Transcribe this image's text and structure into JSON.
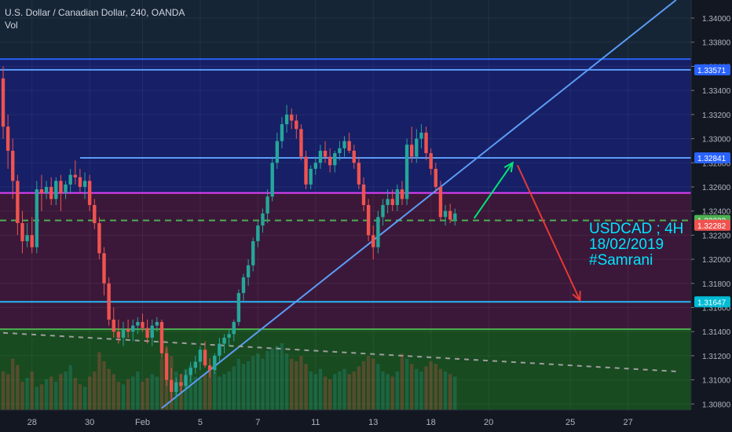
{
  "legend": {
    "symbol_line": "U.S. Dollar / Canadian Dollar, 240, OANDA",
    "volume_label": "Vol"
  },
  "annotation": {
    "line1": "USDCAD ; 4H",
    "line2": "18/02/2019",
    "line3": "#Samrani"
  },
  "chart_data": {
    "type": "candlestick",
    "title": "U.S. Dollar / Canadian Dollar, 240, OANDA",
    "y_axis": {
      "position": "right",
      "range": [
        1.3075,
        1.3415
      ],
      "tick_labels": [
        "1.34000",
        "1.33800",
        "1.33600",
        "1.33400",
        "1.33200",
        "1.33000",
        "1.32800",
        "1.32600",
        "1.32400",
        "1.32200",
        "1.32000",
        "1.31800",
        "1.31600",
        "1.31400",
        "1.31200",
        "1.31000",
        "1.30800"
      ],
      "price_tags": [
        {
          "label": "1.33571",
          "color": "#2962ff",
          "value": 1.33571
        },
        {
          "label": "1.32841",
          "color": "#2962ff",
          "value": 1.32841
        },
        {
          "label": "1.32322",
          "color": "#4caf50",
          "value": 1.32322
        },
        {
          "label": "1.32282",
          "color": "#ef5350",
          "value": 1.32282
        },
        {
          "label": "1.31647",
          "color": "#00bcd4",
          "value": 1.31647
        }
      ]
    },
    "x_axis": {
      "tick_labels": [
        "28",
        "30",
        "Feb",
        "5",
        "7",
        "11",
        "13",
        "18",
        "20",
        "25",
        "27"
      ],
      "tick_bars": [
        6,
        18,
        29,
        41,
        53,
        65,
        77,
        89,
        101,
        118,
        130
      ]
    },
    "horizontal_levels": [
      {
        "name": "top-zone-upper",
        "value": 1.3366,
        "color": "#2962ff"
      },
      {
        "name": "resistance-1",
        "value": 1.33571,
        "color": "#5b9cf6"
      },
      {
        "name": "resistance-2",
        "value": 1.32841,
        "color": "#5b9cf6",
        "from_bar": 16
      },
      {
        "name": "magenta-level",
        "value": 1.3255,
        "color": "#e040fb"
      },
      {
        "name": "current-price",
        "value": 1.32322,
        "color": "#4caf50",
        "style": "dashed"
      },
      {
        "name": "support-1",
        "value": 1.31647,
        "color": "#29b6f6"
      },
      {
        "name": "support-zone-top",
        "value": 1.3142,
        "color": "#4caf50"
      }
    ],
    "zones": [
      {
        "name": "blue-zone",
        "top": 1.3365,
        "bottom": 1.3255,
        "color": "#1a237e"
      },
      {
        "name": "magenta-zone",
        "top": 1.3255,
        "bottom": 1.3142,
        "color": "#4a1942"
      },
      {
        "name": "green-zone",
        "top": 1.3142,
        "bottom": 1.3075,
        "color": "#1b5e20"
      }
    ],
    "trendlines": [
      {
        "name": "ascending-trendline",
        "from": {
          "bar": 33,
          "price": 1.30765
        },
        "to": {
          "bar": 140,
          "price": 1.3415
        },
        "color": "#5b9cf6"
      },
      {
        "name": "descending-dashed-line",
        "from": {
          "bar": 0,
          "price": 1.3139
        },
        "to": {
          "bar": 140,
          "price": 1.3107
        },
        "color": "#9e9e9e",
        "style": "dashed"
      }
    ],
    "projection_arrows": [
      {
        "name": "up-arrow",
        "from": {
          "bar": 98,
          "price": 1.3234
        },
        "to": {
          "bar": 106,
          "price": 1.328
        },
        "color": "#00e676"
      },
      {
        "name": "down-arrow",
        "from": {
          "bar": 107,
          "price": 1.3278
        },
        "to": {
          "bar": 120,
          "price": 1.3166
        },
        "color": "#e53935"
      }
    ],
    "candles": [
      [
        1.335,
        1.336,
        1.33,
        1.331
      ],
      [
        1.331,
        1.332,
        1.3275,
        1.329
      ],
      [
        1.329,
        1.33,
        1.325,
        1.3265
      ],
      [
        1.3265,
        1.327,
        1.322,
        1.323
      ],
      [
        1.323,
        1.324,
        1.3205,
        1.3215
      ],
      [
        1.3215,
        1.323,
        1.321,
        1.322
      ],
      [
        1.322,
        1.3235,
        1.3205,
        1.321
      ],
      [
        1.321,
        1.3265,
        1.3205,
        1.3258
      ],
      [
        1.3258,
        1.327,
        1.324,
        1.3255
      ],
      [
        1.3255,
        1.3265,
        1.325,
        1.326
      ],
      [
        1.326,
        1.3268,
        1.3245,
        1.325
      ],
      [
        1.325,
        1.3268,
        1.3245,
        1.3265
      ],
      [
        1.3265,
        1.327,
        1.324,
        1.3255
      ],
      [
        1.3255,
        1.3265,
        1.325,
        1.3262
      ],
      [
        1.3262,
        1.3275,
        1.3255,
        1.327
      ],
      [
        1.327,
        1.3282,
        1.3262,
        1.3268
      ],
      [
        1.3268,
        1.3275,
        1.3255,
        1.326
      ],
      [
        1.326,
        1.3272,
        1.325,
        1.3265
      ],
      [
        1.3265,
        1.327,
        1.324,
        1.3245
      ],
      [
        1.3245,
        1.325,
        1.3225,
        1.323
      ],
      [
        1.323,
        1.3235,
        1.32,
        1.3205
      ],
      [
        1.3205,
        1.321,
        1.317,
        1.318
      ],
      [
        1.318,
        1.3185,
        1.3145,
        1.315
      ],
      [
        1.315,
        1.316,
        1.3135,
        1.314
      ],
      [
        1.314,
        1.315,
        1.313,
        1.3135
      ],
      [
        1.3135,
        1.3148,
        1.3128,
        1.3142
      ],
      [
        1.3142,
        1.315,
        1.3135,
        1.314
      ],
      [
        1.314,
        1.315,
        1.3132,
        1.3145
      ],
      [
        1.3145,
        1.3152,
        1.3138,
        1.3148
      ],
      [
        1.3148,
        1.3155,
        1.314,
        1.3143
      ],
      [
        1.3143,
        1.315,
        1.313,
        1.3135
      ],
      [
        1.3135,
        1.315,
        1.3128,
        1.3145
      ],
      [
        1.3145,
        1.3152,
        1.314,
        1.3148
      ],
      [
        1.3148,
        1.315,
        1.3118,
        1.3122
      ],
      [
        1.3122,
        1.3128,
        1.3095,
        1.31
      ],
      [
        1.31,
        1.311,
        1.3082,
        1.309
      ],
      [
        1.309,
        1.3102,
        1.3085,
        1.3098
      ],
      [
        1.3098,
        1.3105,
        1.309,
        1.3095
      ],
      [
        1.3095,
        1.3108,
        1.3092,
        1.3104
      ],
      [
        1.3104,
        1.3115,
        1.3098,
        1.311
      ],
      [
        1.311,
        1.312,
        1.3105,
        1.3115
      ],
      [
        1.3115,
        1.3128,
        1.3108,
        1.3125
      ],
      [
        1.3125,
        1.3132,
        1.311,
        1.3112
      ],
      [
        1.3112,
        1.3118,
        1.3102,
        1.3108
      ],
      [
        1.3108,
        1.3122,
        1.3105,
        1.312
      ],
      [
        1.312,
        1.3135,
        1.3115,
        1.313
      ],
      [
        1.313,
        1.3138,
        1.3122,
        1.3135
      ],
      [
        1.3135,
        1.3142,
        1.3128,
        1.3138
      ],
      [
        1.3138,
        1.315,
        1.3132,
        1.3148
      ],
      [
        1.3148,
        1.3175,
        1.3145,
        1.3172
      ],
      [
        1.3172,
        1.3188,
        1.3165,
        1.3185
      ],
      [
        1.3185,
        1.32,
        1.3178,
        1.3195
      ],
      [
        1.3195,
        1.3218,
        1.319,
        1.3215
      ],
      [
        1.3215,
        1.3232,
        1.321,
        1.3228
      ],
      [
        1.3228,
        1.3242,
        1.3222,
        1.3238
      ],
      [
        1.3238,
        1.3258,
        1.323,
        1.3252
      ],
      [
        1.3252,
        1.3285,
        1.3248,
        1.328
      ],
      [
        1.328,
        1.3305,
        1.3275,
        1.3298
      ],
      [
        1.3298,
        1.3318,
        1.3292,
        1.3312
      ],
      [
        1.3312,
        1.3328,
        1.3305,
        1.332
      ],
      [
        1.332,
        1.3325,
        1.3308,
        1.3315
      ],
      [
        1.3315,
        1.332,
        1.33,
        1.3308
      ],
      [
        1.3308,
        1.3312,
        1.3282,
        1.3285
      ],
      [
        1.3285,
        1.329,
        1.3258,
        1.3262
      ],
      [
        1.3262,
        1.3278,
        1.3258,
        1.3275
      ],
      [
        1.3275,
        1.3285,
        1.327,
        1.328
      ],
      [
        1.328,
        1.3295,
        1.3275,
        1.329
      ],
      [
        1.329,
        1.3298,
        1.328,
        1.3285
      ],
      [
        1.3285,
        1.3292,
        1.3272,
        1.3278
      ],
      [
        1.3278,
        1.329,
        1.3272,
        1.3288
      ],
      [
        1.3288,
        1.3298,
        1.3282,
        1.3292
      ],
      [
        1.3292,
        1.3302,
        1.3285,
        1.3298
      ],
      [
        1.3298,
        1.3305,
        1.3288,
        1.329
      ],
      [
        1.329,
        1.3295,
        1.3275,
        1.328
      ],
      [
        1.328,
        1.3285,
        1.3258,
        1.3262
      ],
      [
        1.3262,
        1.3268,
        1.324,
        1.3245
      ],
      [
        1.3245,
        1.325,
        1.3215,
        1.322
      ],
      [
        1.322,
        1.3228,
        1.32,
        1.321
      ],
      [
        1.321,
        1.324,
        1.3205,
        1.3235
      ],
      [
        1.3235,
        1.325,
        1.3228,
        1.3245
      ],
      [
        1.3245,
        1.3258,
        1.3238,
        1.325
      ],
      [
        1.325,
        1.3258,
        1.324,
        1.3245
      ],
      [
        1.3245,
        1.3262,
        1.324,
        1.3258
      ],
      [
        1.3258,
        1.3265,
        1.3245,
        1.325
      ],
      [
        1.325,
        1.33,
        1.3245,
        1.3295
      ],
      [
        1.3295,
        1.331,
        1.328,
        1.3285
      ],
      [
        1.3285,
        1.3308,
        1.328,
        1.33
      ],
      [
        1.33,
        1.3312,
        1.3292,
        1.3305
      ],
      [
        1.3305,
        1.331,
        1.3282,
        1.3288
      ],
      [
        1.3288,
        1.3292,
        1.327,
        1.3275
      ],
      [
        1.3275,
        1.328,
        1.3255,
        1.326
      ],
      [
        1.326,
        1.3265,
        1.3232,
        1.3235
      ],
      [
        1.3235,
        1.3245,
        1.3228,
        1.324
      ],
      [
        1.324,
        1.3246,
        1.323,
        1.3233
      ],
      [
        1.3233,
        1.3242,
        1.3228,
        1.3238
      ]
    ],
    "volumes": [
      30,
      28,
      40,
      35,
      22,
      25,
      30,
      18,
      20,
      24,
      26,
      22,
      28,
      30,
      35,
      25,
      20,
      18,
      26,
      30,
      45,
      38,
      32,
      28,
      22,
      20,
      24,
      26,
      30,
      22,
      25,
      28,
      26,
      40,
      48,
      42,
      30,
      28,
      32,
      35,
      26,
      24,
      28,
      32,
      30,
      26,
      28,
      30,
      34,
      40,
      36,
      38,
      42,
      44,
      40,
      46,
      48,
      50,
      52,
      44,
      40,
      38,
      42,
      36,
      30,
      28,
      32,
      26,
      24,
      28,
      30,
      32,
      28,
      30,
      34,
      38,
      42,
      40,
      36,
      30,
      28,
      26,
      30,
      44,
      40,
      36,
      32,
      30,
      34,
      38,
      36,
      32,
      30,
      28,
      26
    ]
  }
}
